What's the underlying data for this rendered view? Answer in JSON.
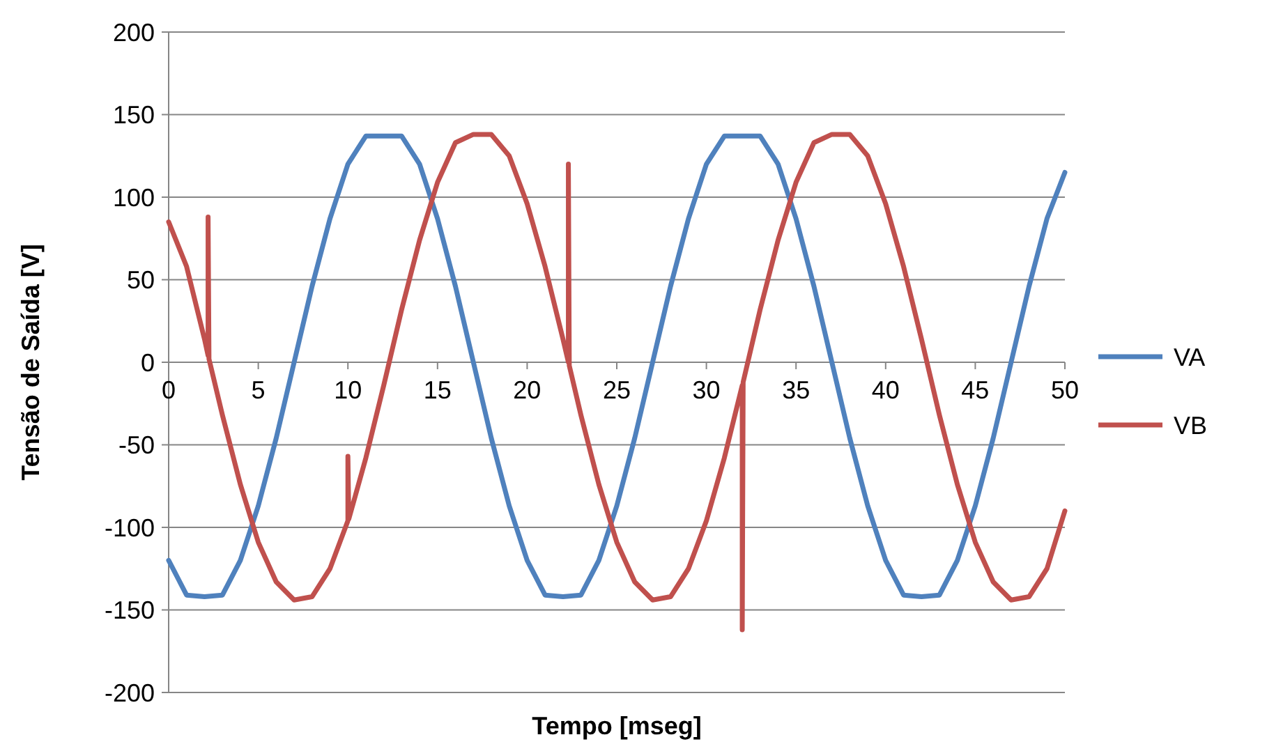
{
  "chart_data": {
    "type": "line",
    "xlabel": "Tempo [mseg]",
    "ylabel": "Tensão de Saída [V]",
    "xlim": [
      0,
      50
    ],
    "xticks": [
      0,
      5,
      10,
      15,
      20,
      25,
      30,
      35,
      40,
      45,
      50
    ],
    "ylim": [
      -200,
      200
    ],
    "yticks": [
      -200,
      -150,
      -100,
      -50,
      0,
      50,
      100,
      150,
      200
    ],
    "grid": "y",
    "legend": "right",
    "marker": "none",
    "line_style": "solid",
    "series": [
      {
        "name": "VA",
        "color": "#4f81bd",
        "x": [
          0,
          1,
          2,
          3,
          4,
          5,
          6,
          7,
          8,
          9,
          10,
          11,
          12,
          13,
          14,
          15,
          16,
          17,
          18,
          19,
          20,
          21,
          22,
          23,
          24,
          25,
          26,
          27,
          28,
          29,
          30,
          31,
          32,
          33,
          34,
          35,
          36,
          37,
          38,
          39,
          40,
          41,
          42,
          43,
          44,
          45,
          46,
          47,
          48,
          49,
          50
        ],
        "values": [
          -120,
          -141,
          -142,
          -141,
          -120,
          -87,
          -46,
          0,
          46,
          87,
          120,
          137,
          137,
          137,
          120,
          87,
          46,
          0,
          -46,
          -87,
          -120,
          -141,
          -142,
          -141,
          -120,
          -87,
          -46,
          0,
          46,
          87,
          120,
          137,
          137,
          137,
          120,
          87,
          46,
          0,
          -46,
          -87,
          -120,
          -141,
          -142,
          -141,
          -120,
          -87,
          -46,
          0,
          46,
          87,
          115
        ]
      },
      {
        "name": "VB",
        "color": "#c0504d",
        "x": [
          0,
          1,
          2,
          2.2,
          2.2,
          2.25,
          3,
          4,
          5,
          6,
          7,
          8,
          9,
          10,
          10,
          10.05,
          11,
          12,
          13,
          14,
          15,
          16,
          17,
          18,
          19,
          20,
          21,
          22,
          22.3,
          22.3,
          22.35,
          23,
          24,
          25,
          26,
          27,
          28,
          29,
          30,
          31,
          32,
          32,
          32.05,
          33,
          34,
          35,
          36,
          37,
          38,
          39,
          40,
          41,
          42,
          43,
          44,
          45,
          46,
          47,
          48,
          49,
          50
        ],
        "values": [
          85,
          58,
          14,
          4,
          88,
          2,
          -32,
          -74,
          -109,
          -133,
          -144,
          -142,
          -125,
          -96,
          -57,
          -95,
          -58,
          -14,
          32,
          74,
          109,
          133,
          138,
          138,
          125,
          96,
          58,
          14,
          0,
          120,
          -2,
          -32,
          -74,
          -109,
          -133,
          -144,
          -142,
          -125,
          -96,
          -58,
          -14,
          -162,
          -12,
          32,
          74,
          109,
          133,
          138,
          138,
          125,
          96,
          58,
          14,
          -32,
          -74,
          -109,
          -133,
          -144,
          -142,
          -125,
          -90
        ]
      }
    ]
  }
}
